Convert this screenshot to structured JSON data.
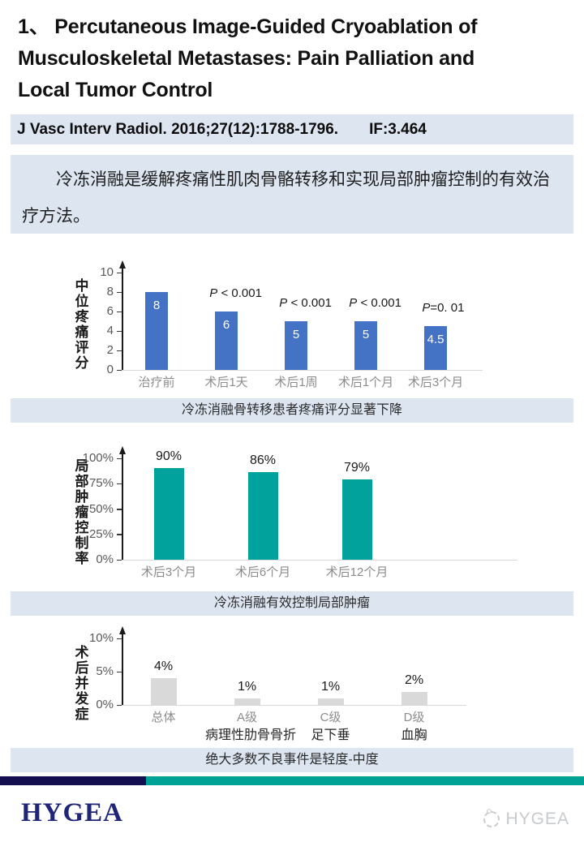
{
  "header": {
    "title_lines": [
      "1、 Percutaneous Image-Guided Cryoablation of",
      "Musculoskeletal Metastases: Pain Palliation and",
      "Local Tumor Control"
    ]
  },
  "journal": {
    "citation": "J Vasc Interv Radiol. 2016;27(12):1788-1796.",
    "impact_factor": "IF:3.464"
  },
  "summary": {
    "text": "冷冻消融是缓解疼痛性肌肉骨骼转移和实现局部肿瘤控制的有效治疗方法。"
  },
  "colors": {
    "panel_blue": "#dce5f0",
    "pain_bar_blue": "#4472c4",
    "tumor_bar_teal": "#00a29b",
    "complication_bar_gray": "#d9d9d9",
    "divider_navy": "#140f4f",
    "divider_teal": "#00a296",
    "logo_navy": "#1f2678"
  },
  "chart_data": [
    {
      "type": "bar",
      "name": "median-pain-score",
      "y_axis_label": "中位疼痛评分",
      "y_ticks": [
        "0",
        "2",
        "4",
        "6",
        "8",
        "10"
      ],
      "y_max": 10,
      "ylim": [
        0,
        10
      ],
      "grid": false,
      "categories": [
        "治疗前",
        "术后1天",
        "术后1周",
        "术后1个月",
        "术后3个月"
      ],
      "values": [
        8,
        6,
        5,
        5,
        4.5
      ],
      "bar_labels": [
        "8",
        "6",
        "5",
        "5",
        "4.5"
      ],
      "bar_label_position": "inside",
      "annotations": [
        "",
        "P < 0.001",
        "P < 0.001",
        "P < 0.001",
        "P=0. 01"
      ],
      "bar_color": "#4472c4",
      "caption": "冷冻消融骨转移患者疼痛评分显著下降"
    },
    {
      "type": "bar",
      "name": "local-tumor-control-rate",
      "y_axis_label": "局部肿瘤控制率",
      "y_ticks": [
        "0%",
        "25%",
        "50%",
        "75%",
        "100%"
      ],
      "y_max": 100,
      "ylim": [
        0,
        100
      ],
      "grid": false,
      "categories": [
        "术后3个月",
        "术后6个月",
        "术后12个月"
      ],
      "values": [
        90,
        86,
        79
      ],
      "bar_labels": [
        "90%",
        "86%",
        "79%"
      ],
      "bar_label_position": "above",
      "annotations": [
        "",
        "",
        ""
      ],
      "bar_color": "#00a29b",
      "caption": "冷冻消融有效控制局部肿瘤"
    },
    {
      "type": "bar",
      "name": "postoperative-complications",
      "y_axis_label": "术后并发症",
      "y_ticks": [
        "0%",
        "5%",
        "10%"
      ],
      "y_max": 10,
      "ylim": [
        0,
        10
      ],
      "grid": false,
      "categories": [
        "总体",
        "A级",
        "C级",
        "D级"
      ],
      "sub_categories": [
        "",
        "病理性肋骨骨折",
        "足下垂",
        "血胸"
      ],
      "values": [
        4,
        1,
        1,
        2
      ],
      "bar_labels": [
        "4%",
        "1%",
        "1%",
        "2%"
      ],
      "bar_label_position": "above",
      "annotations": [
        "",
        "",
        "",
        ""
      ],
      "bar_color": "#d9d9d9",
      "caption": "绝大多数不良事件是轻度-中度"
    }
  ],
  "footer": {
    "logo_text": "HYGEA",
    "watermark_text": "HYGEA"
  }
}
